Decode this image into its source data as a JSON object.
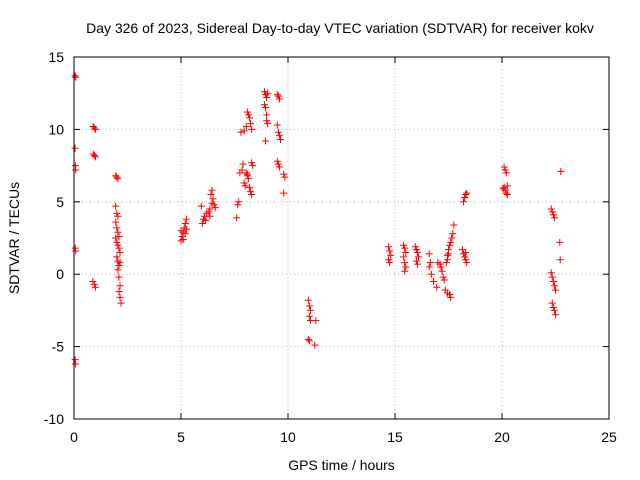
{
  "chart_data": {
    "type": "scatter",
    "title": "Day 326 of 2023, Sidereal Day-to-day VTEC variation (SDTVAR) for receiver kokv",
    "xlabel": "GPS time / hours",
    "ylabel": "SDTVAR / TECUs",
    "xlim": [
      0,
      25
    ],
    "ylim": [
      -10,
      15
    ],
    "xticks": [
      0,
      5,
      10,
      15,
      20,
      25
    ],
    "yticks": [
      -10,
      -5,
      0,
      5,
      10,
      15
    ],
    "xtick_labels": [
      "0",
      "5",
      "10",
      "15",
      "20",
      "25"
    ],
    "ytick_labels": [
      "-10",
      "-5",
      "0",
      "5",
      "10",
      "15"
    ],
    "grid": true,
    "marker": "+",
    "color": "#ff0000",
    "series": [
      {
        "name": "SDTVAR",
        "points": [
          [
            0.05,
            13.7
          ],
          [
            0.08,
            13.6
          ],
          [
            0.05,
            8.7
          ],
          [
            0.07,
            7.5
          ],
          [
            0.08,
            7.2
          ],
          [
            0.06,
            1.8
          ],
          [
            0.08,
            1.6
          ],
          [
            0.05,
            -5.9
          ],
          [
            0.07,
            -6.2
          ],
          [
            0.9,
            10.2
          ],
          [
            0.95,
            10.1
          ],
          [
            1.0,
            10.0
          ],
          [
            0.9,
            8.3
          ],
          [
            0.95,
            8.2
          ],
          [
            1.0,
            8.1
          ],
          [
            0.88,
            -0.5
          ],
          [
            0.95,
            -0.7
          ],
          [
            1.0,
            -0.9
          ],
          [
            1.95,
            6.8
          ],
          [
            2.0,
            6.7
          ],
          [
            2.05,
            6.6
          ],
          [
            1.95,
            4.7
          ],
          [
            2.0,
            4.2
          ],
          [
            2.05,
            4.0
          ],
          [
            1.95,
            3.6
          ],
          [
            2.0,
            3.2
          ],
          [
            2.05,
            2.9
          ],
          [
            2.1,
            2.6
          ],
          [
            1.95,
            2.5
          ],
          [
            2.0,
            2.2
          ],
          [
            2.05,
            2.0
          ],
          [
            2.1,
            1.8
          ],
          [
            2.15,
            1.5
          ],
          [
            2.0,
            1.2
          ],
          [
            2.05,
            0.9
          ],
          [
            2.1,
            0.6
          ],
          [
            2.15,
            0.8
          ],
          [
            2.05,
            0.3
          ],
          [
            2.1,
            -0.2
          ],
          [
            2.15,
            -0.8
          ],
          [
            2.1,
            -1.2
          ],
          [
            2.15,
            -1.6
          ],
          [
            2.2,
            -2.0
          ],
          [
            5.0,
            2.3
          ],
          [
            5.05,
            2.6
          ],
          [
            5.1,
            2.9
          ],
          [
            5.15,
            3.2
          ],
          [
            5.2,
            3.5
          ],
          [
            5.25,
            3.8
          ],
          [
            5.0,
            3.0
          ],
          [
            5.1,
            2.4
          ],
          [
            5.2,
            2.8
          ],
          [
            5.25,
            3.1
          ],
          [
            6.0,
            3.5
          ],
          [
            6.05,
            3.8
          ],
          [
            6.1,
            4.0
          ],
          [
            6.15,
            3.7
          ],
          [
            5.95,
            4.7
          ],
          [
            6.2,
            4.2
          ],
          [
            6.3,
            4.3
          ],
          [
            6.35,
            4.5
          ],
          [
            6.4,
            5.5
          ],
          [
            6.45,
            5.8
          ],
          [
            6.5,
            5.2
          ],
          [
            6.55,
            4.8
          ],
          [
            6.6,
            4.6
          ],
          [
            6.45,
            4.9
          ],
          [
            6.35,
            4.0
          ],
          [
            7.6,
            3.9
          ],
          [
            7.65,
            4.8
          ],
          [
            7.7,
            5.0
          ],
          [
            7.75,
            7.0
          ],
          [
            7.8,
            9.8
          ],
          [
            7.85,
            7.2
          ],
          [
            7.9,
            7.6
          ],
          [
            7.95,
            6.3
          ],
          [
            8.0,
            6.1
          ],
          [
            7.95,
            9.9
          ],
          [
            8.05,
            10.2
          ],
          [
            8.1,
            11.2
          ],
          [
            8.15,
            11.0
          ],
          [
            8.2,
            10.8
          ],
          [
            8.25,
            10.4
          ],
          [
            8.3,
            7.7
          ],
          [
            8.35,
            7.5
          ],
          [
            8.05,
            7.0
          ],
          [
            8.1,
            6.8
          ],
          [
            8.15,
            6.6
          ],
          [
            8.2,
            6.0
          ],
          [
            8.25,
            5.7
          ],
          [
            8.3,
            5.5
          ],
          [
            8.1,
            6.9
          ],
          [
            8.3,
            10.0
          ],
          [
            8.9,
            12.6
          ],
          [
            8.95,
            12.4
          ],
          [
            9.0,
            12.2
          ],
          [
            9.05,
            12.5
          ],
          [
            8.9,
            11.7
          ],
          [
            8.95,
            11.5
          ],
          [
            9.0,
            11.0
          ],
          [
            9.05,
            10.4
          ],
          [
            8.95,
            9.2
          ],
          [
            9.0,
            10.6
          ],
          [
            9.5,
            12.4
          ],
          [
            9.55,
            12.3
          ],
          [
            9.6,
            12.1
          ],
          [
            9.5,
            10.3
          ],
          [
            9.55,
            9.8
          ],
          [
            9.6,
            9.6
          ],
          [
            9.65,
            9.3
          ],
          [
            9.5,
            7.8
          ],
          [
            9.55,
            7.6
          ],
          [
            9.6,
            7.4
          ],
          [
            9.8,
            6.9
          ],
          [
            9.85,
            6.7
          ],
          [
            9.8,
            5.6
          ],
          [
            10.95,
            -1.8
          ],
          [
            11.0,
            -2.2
          ],
          [
            11.05,
            -2.5
          ],
          [
            11.0,
            -2.9
          ],
          [
            11.05,
            -3.2
          ],
          [
            11.3,
            -3.2
          ],
          [
            10.95,
            -4.5
          ],
          [
            11.0,
            -4.6
          ],
          [
            11.25,
            -4.9
          ],
          [
            14.7,
            1.9
          ],
          [
            14.75,
            1.6
          ],
          [
            14.8,
            1.3
          ],
          [
            14.7,
            1.0
          ],
          [
            14.75,
            0.8
          ],
          [
            15.4,
            2.0
          ],
          [
            15.45,
            1.8
          ],
          [
            15.5,
            1.5
          ],
          [
            15.4,
            1.2
          ],
          [
            15.45,
            0.8
          ],
          [
            15.5,
            0.5
          ],
          [
            15.45,
            0.2
          ],
          [
            15.95,
            1.9
          ],
          [
            16.0,
            1.7
          ],
          [
            16.05,
            1.5
          ],
          [
            16.1,
            1.2
          ],
          [
            16.0,
            0.9
          ],
          [
            16.05,
            0.7
          ],
          [
            16.6,
            1.4
          ],
          [
            16.65,
            0.8
          ],
          [
            16.6,
            0.5
          ],
          [
            16.7,
            0.0
          ],
          [
            16.8,
            -0.5
          ],
          [
            16.95,
            -0.9
          ],
          [
            17.0,
            0.8
          ],
          [
            17.1,
            0.7
          ],
          [
            17.15,
            0.5
          ],
          [
            17.2,
            0.2
          ],
          [
            17.25,
            -0.2
          ],
          [
            17.3,
            -0.4
          ],
          [
            17.35,
            -1.1
          ],
          [
            17.45,
            -1.3
          ],
          [
            17.55,
            -1.4
          ],
          [
            17.6,
            -1.6
          ],
          [
            17.4,
            0.8
          ],
          [
            17.45,
            1.3
          ],
          [
            17.5,
            1.7
          ],
          [
            17.55,
            2.0
          ],
          [
            17.6,
            2.2
          ],
          [
            17.65,
            2.5
          ],
          [
            17.7,
            2.8
          ],
          [
            17.75,
            3.4
          ],
          [
            17.45,
            1.0
          ],
          [
            17.5,
            1.4
          ],
          [
            18.2,
            5.0
          ],
          [
            18.25,
            5.3
          ],
          [
            18.3,
            5.5
          ],
          [
            18.35,
            5.6
          ],
          [
            18.15,
            1.7
          ],
          [
            18.2,
            1.4
          ],
          [
            18.25,
            1.2
          ],
          [
            18.3,
            1.0
          ],
          [
            18.35,
            0.8
          ],
          [
            18.3,
            1.5
          ],
          [
            20.1,
            7.4
          ],
          [
            20.15,
            7.2
          ],
          [
            20.2,
            7.0
          ],
          [
            20.1,
            6.0
          ],
          [
            20.15,
            5.8
          ],
          [
            20.2,
            5.6
          ],
          [
            20.25,
            5.5
          ],
          [
            20.05,
            5.9
          ],
          [
            20.25,
            6.1
          ],
          [
            22.3,
            4.5
          ],
          [
            22.35,
            4.3
          ],
          [
            22.4,
            4.1
          ],
          [
            22.45,
            3.9
          ],
          [
            22.3,
            0.1
          ],
          [
            22.35,
            -0.2
          ],
          [
            22.4,
            -0.5
          ],
          [
            22.45,
            -0.8
          ],
          [
            22.5,
            -1.1
          ],
          [
            22.35,
            -2.0
          ],
          [
            22.4,
            -2.3
          ],
          [
            22.45,
            -2.5
          ],
          [
            22.5,
            -2.8
          ],
          [
            22.75,
            7.1
          ],
          [
            22.7,
            2.2
          ],
          [
            22.72,
            1.0
          ]
        ]
      }
    ]
  }
}
